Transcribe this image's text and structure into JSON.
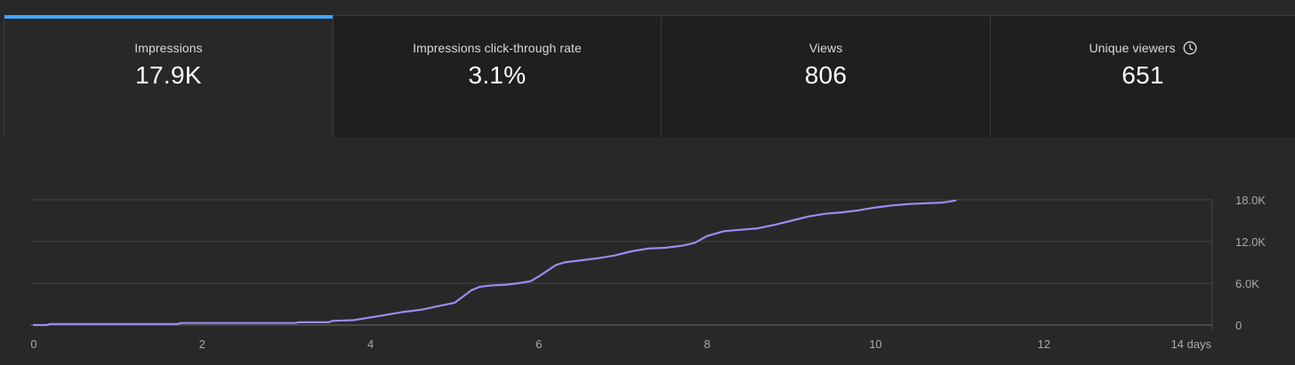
{
  "tabs": [
    {
      "label": "Impressions",
      "value": "17.9K",
      "active": true
    },
    {
      "label": "Impressions click-through rate",
      "value": "3.1%",
      "active": false
    },
    {
      "label": "Views",
      "value": "806",
      "active": false
    },
    {
      "label": "Unique viewers",
      "value": "651",
      "active": false,
      "icon": "clock-icon"
    }
  ],
  "colors": {
    "accent": "#3ea6ff",
    "line": "#9b8cf0"
  },
  "chart_data": {
    "type": "line",
    "title": "",
    "xlabel": "",
    "ylabel": "",
    "xlim": [
      0,
      14
    ],
    "ylim": [
      0,
      18000
    ],
    "x_ticks": [
      0,
      2,
      4,
      6,
      8,
      10,
      12,
      14
    ],
    "x_tick_labels": [
      "0",
      "2",
      "4",
      "6",
      "8",
      "10",
      "12",
      "14 days"
    ],
    "y_ticks": [
      0,
      6000,
      12000,
      18000
    ],
    "y_tick_labels": [
      "0",
      "6.0K",
      "12.0K",
      "18.0K"
    ],
    "grid": true,
    "series": [
      {
        "x": [
          0,
          0.15,
          0.2,
          1.7,
          1.75,
          3.1,
          3.15,
          3.5,
          3.55,
          3.8,
          4.0,
          4.2,
          4.4,
          4.6,
          4.8,
          5.0,
          5.1,
          5.2,
          5.3,
          5.45,
          5.6,
          5.75,
          5.9,
          6.0,
          6.1,
          6.2,
          6.3,
          6.5,
          6.7,
          6.9,
          7.1,
          7.3,
          7.5,
          7.7,
          7.85,
          8.0,
          8.2,
          8.4,
          8.6,
          8.8,
          9.0,
          9.2,
          9.4,
          9.6,
          9.8,
          10.0,
          10.2,
          10.4,
          10.6,
          10.8,
          10.95
        ],
        "y": [
          0,
          0,
          150,
          150,
          300,
          300,
          400,
          400,
          600,
          700,
          1100,
          1500,
          1900,
          2200,
          2700,
          3200,
          4100,
          5000,
          5500,
          5700,
          5800,
          6000,
          6300,
          7000,
          7800,
          8600,
          9000,
          9300,
          9600,
          10000,
          10600,
          11000,
          11100,
          11400,
          11800,
          12800,
          13500,
          13700,
          13900,
          14400,
          15000,
          15600,
          16000,
          16200,
          16500,
          16900,
          17200,
          17400,
          17500,
          17600,
          17900
        ]
      }
    ]
  }
}
